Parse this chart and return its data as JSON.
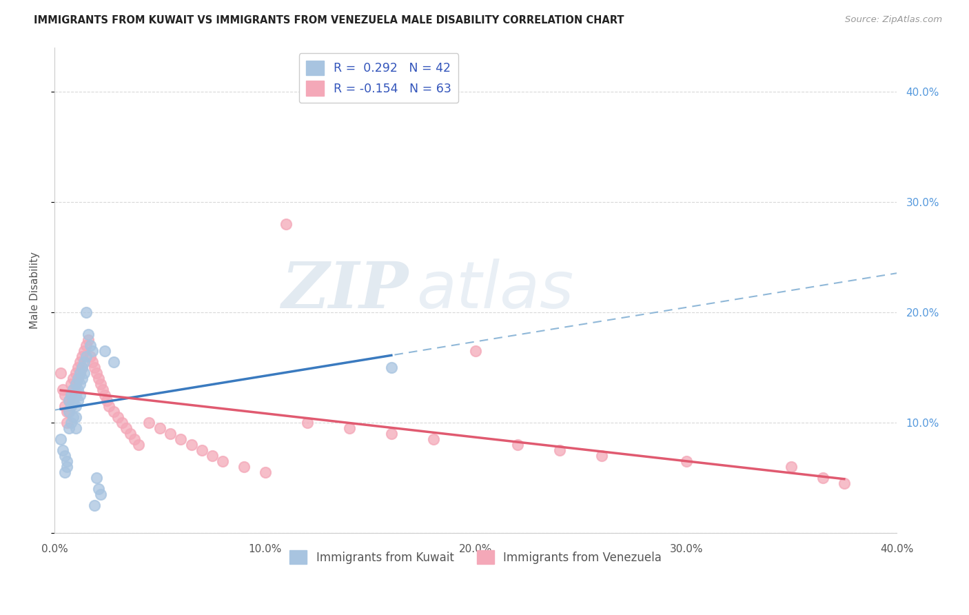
{
  "title": "IMMIGRANTS FROM KUWAIT VS IMMIGRANTS FROM VENEZUELA MALE DISABILITY CORRELATION CHART",
  "source": "Source: ZipAtlas.com",
  "ylabel": "Male Disability",
  "xlim": [
    0.0,
    0.4
  ],
  "ylim": [
    0.0,
    0.44
  ],
  "x_ticks": [
    0.0,
    0.1,
    0.2,
    0.3,
    0.4
  ],
  "x_tick_labels": [
    "0.0%",
    "10.0%",
    "20.0%",
    "30.0%",
    "40.0%"
  ],
  "y_ticks": [
    0.0,
    0.1,
    0.2,
    0.3,
    0.4
  ],
  "y_tick_labels_right": [
    "",
    "10.0%",
    "20.0%",
    "30.0%",
    "40.0%"
  ],
  "kuwait_color": "#a8c4e0",
  "venezuela_color": "#f4a8b8",
  "kuwait_line_color": "#3a7abf",
  "venezuela_line_color": "#e05a70",
  "kuwait_dashed_color": "#90b8d8",
  "legend_R_kuwait": "R =  0.292",
  "legend_N_kuwait": "N = 42",
  "legend_R_venezuela": "R = -0.154",
  "legend_N_venezuela": "N = 63",
  "watermark_zip": "ZIP",
  "watermark_atlas": "atlas",
  "kuwait_x": [
    0.003,
    0.004,
    0.005,
    0.005,
    0.006,
    0.006,
    0.007,
    0.007,
    0.007,
    0.008,
    0.008,
    0.008,
    0.009,
    0.009,
    0.009,
    0.01,
    0.01,
    0.01,
    0.01,
    0.01,
    0.011,
    0.011,
    0.011,
    0.012,
    0.012,
    0.012,
    0.013,
    0.013,
    0.014,
    0.014,
    0.015,
    0.015,
    0.016,
    0.017,
    0.018,
    0.019,
    0.02,
    0.021,
    0.022,
    0.024,
    0.028,
    0.16
  ],
  "kuwait_y": [
    0.085,
    0.075,
    0.055,
    0.07,
    0.065,
    0.06,
    0.12,
    0.11,
    0.095,
    0.125,
    0.115,
    0.1,
    0.13,
    0.12,
    0.105,
    0.135,
    0.125,
    0.115,
    0.105,
    0.095,
    0.14,
    0.13,
    0.12,
    0.145,
    0.135,
    0.125,
    0.15,
    0.14,
    0.155,
    0.145,
    0.16,
    0.2,
    0.18,
    0.17,
    0.165,
    0.025,
    0.05,
    0.04,
    0.035,
    0.165,
    0.155,
    0.15
  ],
  "venezuela_x": [
    0.003,
    0.004,
    0.005,
    0.005,
    0.006,
    0.006,
    0.007,
    0.007,
    0.008,
    0.008,
    0.009,
    0.009,
    0.01,
    0.01,
    0.011,
    0.011,
    0.012,
    0.012,
    0.013,
    0.013,
    0.014,
    0.015,
    0.016,
    0.017,
    0.018,
    0.019,
    0.02,
    0.021,
    0.022,
    0.023,
    0.024,
    0.025,
    0.026,
    0.028,
    0.03,
    0.032,
    0.034,
    0.036,
    0.038,
    0.04,
    0.045,
    0.05,
    0.055,
    0.06,
    0.065,
    0.07,
    0.075,
    0.08,
    0.09,
    0.1,
    0.11,
    0.12,
    0.14,
    0.16,
    0.18,
    0.2,
    0.22,
    0.24,
    0.26,
    0.3,
    0.35,
    0.365,
    0.375
  ],
  "venezuela_y": [
    0.145,
    0.13,
    0.125,
    0.115,
    0.11,
    0.1,
    0.12,
    0.11,
    0.135,
    0.125,
    0.14,
    0.13,
    0.145,
    0.135,
    0.15,
    0.14,
    0.155,
    0.145,
    0.16,
    0.15,
    0.165,
    0.17,
    0.175,
    0.16,
    0.155,
    0.15,
    0.145,
    0.14,
    0.135,
    0.13,
    0.125,
    0.12,
    0.115,
    0.11,
    0.105,
    0.1,
    0.095,
    0.09,
    0.085,
    0.08,
    0.1,
    0.095,
    0.09,
    0.085,
    0.08,
    0.075,
    0.07,
    0.065,
    0.06,
    0.055,
    0.28,
    0.1,
    0.095,
    0.09,
    0.085,
    0.165,
    0.08,
    0.075,
    0.07,
    0.065,
    0.06,
    0.05,
    0.045
  ],
  "background_color": "#ffffff",
  "grid_color": "#d8d8d8"
}
